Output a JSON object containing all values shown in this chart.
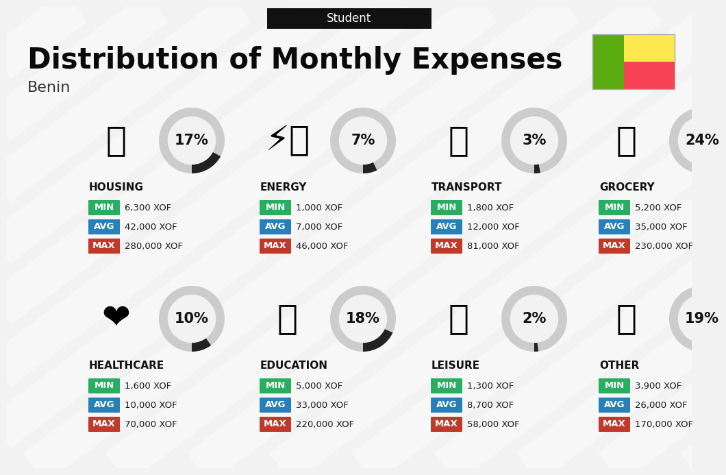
{
  "title": "Distribution of Monthly Expenses",
  "subtitle": "Student",
  "country": "Benin",
  "bg_color": "#f2f2f2",
  "categories": [
    {
      "name": "HOUSING",
      "pct": 17,
      "min": "6,300 XOF",
      "avg": "42,000 XOF",
      "max": "280,000 XOF",
      "row": 0,
      "col": 0
    },
    {
      "name": "ENERGY",
      "pct": 7,
      "min": "1,000 XOF",
      "avg": "7,000 XOF",
      "max": "46,000 XOF",
      "row": 0,
      "col": 1
    },
    {
      "name": "TRANSPORT",
      "pct": 3,
      "min": "1,800 XOF",
      "avg": "12,000 XOF",
      "max": "81,000 XOF",
      "row": 0,
      "col": 2
    },
    {
      "name": "GROCERY",
      "pct": 24,
      "min": "5,200 XOF",
      "avg": "35,000 XOF",
      "max": "230,000 XOF",
      "row": 0,
      "col": 3
    },
    {
      "name": "HEALTHCARE",
      "pct": 10,
      "min": "1,600 XOF",
      "avg": "10,000 XOF",
      "max": "70,000 XOF",
      "row": 1,
      "col": 0
    },
    {
      "name": "EDUCATION",
      "pct": 18,
      "min": "5,000 XOF",
      "avg": "33,000 XOF",
      "max": "220,000 XOF",
      "row": 1,
      "col": 1
    },
    {
      "name": "LEISURE",
      "pct": 2,
      "min": "1,300 XOF",
      "avg": "8,700 XOF",
      "max": "58,000 XOF",
      "row": 1,
      "col": 2
    },
    {
      "name": "OTHER",
      "pct": 19,
      "min": "3,900 XOF",
      "avg": "26,000 XOF",
      "max": "170,000 XOF",
      "row": 1,
      "col": 3
    }
  ],
  "min_color": "#27ae60",
  "avg_color": "#2980b9",
  "max_color": "#c0392b",
  "arc_dark": "#222222",
  "arc_light": "#cccccc",
  "flag_green": "#5aab0f",
  "flag_yellow": "#fde84e",
  "flag_red": "#f74155",
  "header_bg": "#111111",
  "header_fg": "#ffffff",
  "title_fs": 30,
  "sub_fs": 12,
  "country_fs": 16,
  "cat_fs": 11,
  "val_fs": 9.5,
  "pct_fs": 15
}
